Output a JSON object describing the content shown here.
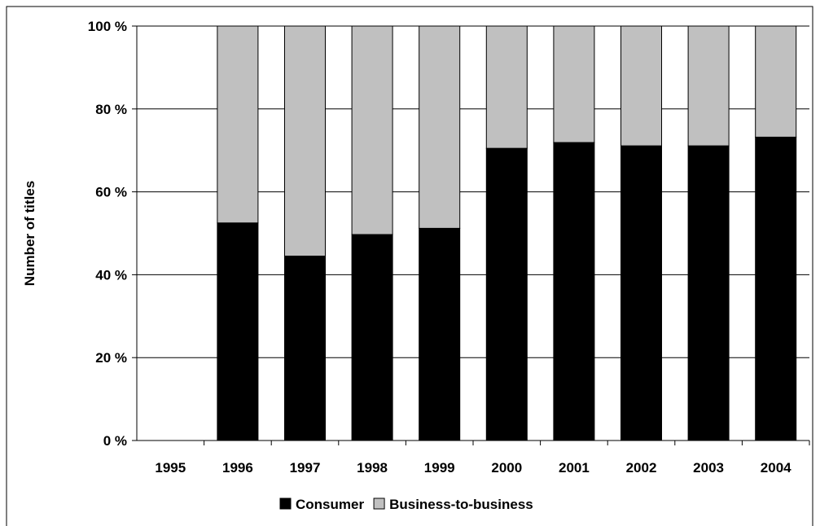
{
  "chart_data": {
    "type": "bar",
    "stacked": true,
    "normalized": true,
    "categories": [
      "1995",
      "1996",
      "1997",
      "1998",
      "1999",
      "2000",
      "2001",
      "2002",
      "2003",
      "2004"
    ],
    "series": [
      {
        "name": "Consumer",
        "color": "#000000",
        "values": [
          0,
          52.5,
          44.5,
          49.7,
          51.2,
          70.5,
          71.9,
          71.1,
          71.1,
          73.2
        ]
      },
      {
        "name": "Business-to-business",
        "color": "#c0c0c0",
        "values": [
          0,
          47.5,
          55.5,
          50.3,
          48.8,
          29.5,
          28.1,
          28.9,
          28.9,
          26.8
        ]
      }
    ],
    "title": "",
    "xlabel": "",
    "ylabel": "Number of titles",
    "ylim": [
      0,
      100
    ],
    "yticks": [
      "0 %",
      "20 %",
      "40 %",
      "60 %",
      "80 %",
      "100 %"
    ],
    "grid": true,
    "legend_position": "bottom"
  }
}
